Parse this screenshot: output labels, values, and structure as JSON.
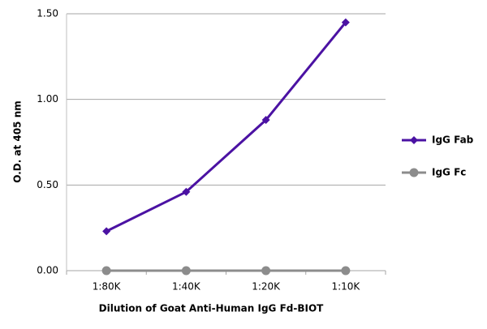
{
  "chart_data": {
    "type": "line",
    "x_label": "Dilution of Goat Anti-Human IgG Fd-BIOT",
    "y_label": "O.D. at 405 nm",
    "categories": [
      "1:80K",
      "1:40K",
      "1:20K",
      "1:10K"
    ],
    "series": [
      {
        "name": "IgG Fab",
        "color": "#4b12a3",
        "marker": "diamond",
        "values": [
          0.23,
          0.46,
          0.88,
          1.45
        ]
      },
      {
        "name": "IgG Fc",
        "color": "#8c8c8c",
        "marker": "circle",
        "values": [
          0.0,
          0.0,
          0.0,
          0.0
        ]
      }
    ],
    "ylim": [
      0,
      1.5
    ],
    "yticks": [
      {
        "value": 0,
        "label": "0.00"
      },
      {
        "value": 0.5,
        "label": "0.50"
      },
      {
        "value": 1,
        "label": "1.00"
      },
      {
        "value": 1.5,
        "label": "1.50"
      }
    ],
    "grid": true,
    "legend": "right"
  }
}
